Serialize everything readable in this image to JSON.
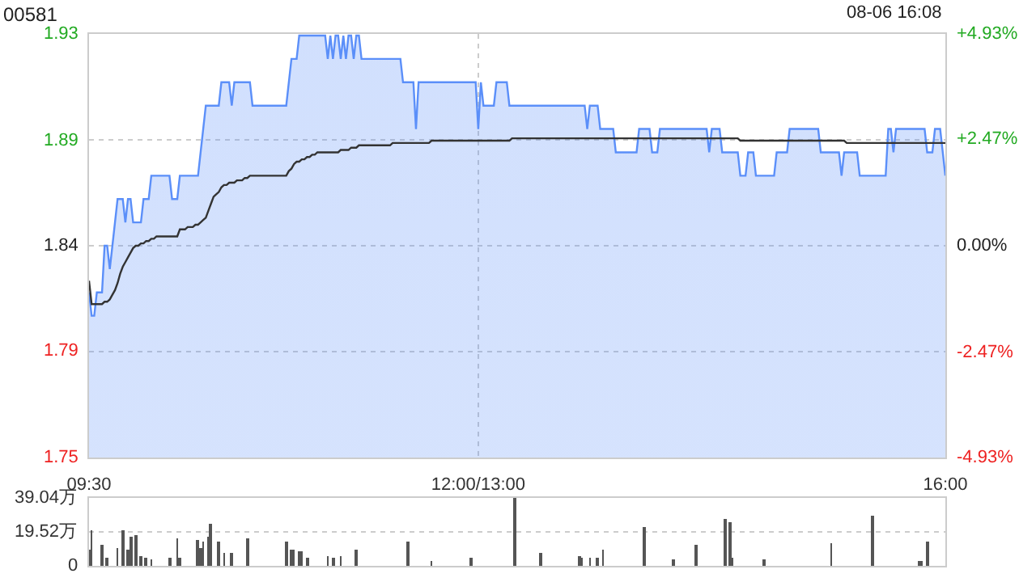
{
  "chart_data": [
    {
      "type": "line",
      "title": "00581",
      "annotations": [
        "08-06 16:08"
      ],
      "categories": [
        "09:30",
        null,
        null,
        null,
        null,
        null,
        null,
        null,
        null,
        null,
        null,
        null,
        null,
        null,
        null,
        null,
        null,
        null,
        null,
        null,
        null,
        null,
        null,
        null,
        null,
        null,
        null,
        null,
        null,
        null,
        null,
        null,
        null,
        null,
        null,
        null,
        null,
        null,
        null,
        null,
        null,
        null,
        null,
        null,
        null,
        null,
        null,
        null,
        null,
        null,
        null,
        null,
        null,
        null,
        null,
        null,
        null,
        null,
        null,
        null,
        null,
        null,
        null,
        null,
        null,
        null,
        null,
        null,
        null,
        null,
        null,
        null,
        null,
        null,
        null,
        null,
        null,
        null,
        null,
        null,
        null,
        null,
        null,
        null,
        null,
        null,
        null,
        null,
        null,
        null,
        null,
        null,
        null,
        null,
        null,
        null,
        null,
        null,
        null,
        null,
        null,
        null,
        null,
        null,
        null,
        null,
        null,
        null,
        null,
        null,
        null,
        null,
        null,
        null,
        null,
        null,
        null,
        null,
        null,
        null,
        null,
        null,
        null,
        null,
        null,
        null,
        null,
        null,
        null,
        null,
        null,
        null,
        null,
        null,
        null,
        null,
        null,
        null,
        null,
        null,
        null,
        null,
        null,
        null,
        null,
        null,
        null,
        null,
        null,
        null,
        "12:00/13:00",
        null,
        null,
        null,
        null,
        null,
        null,
        null,
        null,
        null,
        null,
        null,
        null,
        null,
        null,
        null,
        null,
        null,
        null,
        null,
        null,
        null,
        null,
        null,
        null,
        null,
        null,
        null,
        null,
        null,
        null,
        null,
        null,
        null,
        null,
        null,
        null,
        null,
        null,
        null,
        null,
        null,
        null,
        null,
        null,
        null,
        null,
        null,
        null,
        null,
        null,
        null,
        null,
        null,
        null,
        null,
        null,
        null,
        null,
        null,
        null,
        null,
        null,
        null,
        null,
        null,
        null,
        null,
        null,
        null,
        null,
        null,
        null,
        null,
        null,
        null,
        null,
        null,
        null,
        null,
        null,
        null,
        null,
        null,
        null,
        null,
        null,
        null,
        null,
        null,
        null,
        null,
        null,
        null,
        null,
        null,
        null,
        null,
        null,
        null,
        null,
        null,
        null,
        null,
        null,
        null,
        null,
        null,
        null,
        null,
        null,
        null,
        null,
        null,
        null,
        null,
        null,
        null,
        null,
        null,
        null,
        null,
        null,
        null,
        null,
        null,
        null,
        null,
        null,
        null,
        null,
        null,
        null,
        null,
        null,
        null,
        null,
        null,
        null,
        null,
        null,
        null,
        null,
        null,
        null,
        null,
        null,
        null,
        null,
        null,
        null,
        null,
        null,
        null,
        null,
        null,
        null,
        null,
        null,
        null,
        null,
        null,
        null,
        null,
        null,
        null,
        null,
        null,
        null,
        null,
        null,
        null,
        null,
        null,
        null,
        null,
        null,
        null,
        null,
        null,
        "16:00"
      ],
      "ylim": [
        1.7493,
        1.9307
      ],
      "yticks": [
        {
          "value": 1.7493,
          "label": "1.75"
        },
        {
          "value": 1.7947,
          "label": "1.79"
        },
        {
          "value": 1.84,
          "label": "1.84"
        },
        {
          "value": 1.8853,
          "label": "1.89"
        },
        {
          "value": 1.9307,
          "label": "1.93"
        }
      ],
      "y2lim": [
        -4.93,
        4.93
      ],
      "y2ticks": [
        {
          "value": -4.93,
          "label": "-4.93%"
        },
        {
          "value": -2.47,
          "label": "-2.47%"
        },
        {
          "value": 0,
          "label": "0.00%"
        },
        {
          "value": 2.47,
          "label": "+2.47%"
        },
        {
          "value": 4.93,
          "label": "+4.93%"
        }
      ],
      "grid": true,
      "marker": "none",
      "series": [
        {
          "type": "area",
          "color": "#5b8ff9",
          "values": [
            1.82,
            1.81,
            1.81,
            1.82,
            1.82,
            1.82,
            1.84,
            1.84,
            1.83,
            1.84,
            1.85,
            1.86,
            1.86,
            1.86,
            1.85,
            1.86,
            1.86,
            1.85,
            1.85,
            1.85,
            1.85,
            1.86,
            1.86,
            1.86,
            1.87,
            1.87,
            1.87,
            1.87,
            1.87,
            1.87,
            1.87,
            1.87,
            1.86,
            1.86,
            1.86,
            1.87,
            1.87,
            1.87,
            1.87,
            1.87,
            1.87,
            1.87,
            1.87,
            1.88,
            1.89,
            1.9,
            1.9,
            1.9,
            1.9,
            1.9,
            1.9,
            1.91,
            1.91,
            1.91,
            1.91,
            1.9,
            1.91,
            1.91,
            1.91,
            1.91,
            1.91,
            1.91,
            1.91,
            1.9,
            1.9,
            1.9,
            1.9,
            1.9,
            1.9,
            1.9,
            1.9,
            1.9,
            1.9,
            1.9,
            1.9,
            1.9,
            1.9,
            1.91,
            1.92,
            1.92,
            1.92,
            1.93,
            1.93,
            1.93,
            1.93,
            1.93,
            1.93,
            1.93,
            1.93,
            1.93,
            1.93,
            1.93,
            1.92,
            1.93,
            1.92,
            1.93,
            1.93,
            1.92,
            1.93,
            1.92,
            1.93,
            1.93,
            1.92,
            1.93,
            1.93,
            1.92,
            1.92,
            1.92,
            1.92,
            1.92,
            1.92,
            1.92,
            1.92,
            1.92,
            1.92,
            1.92,
            1.92,
            1.92,
            1.92,
            1.92,
            1.92,
            1.91,
            1.91,
            1.91,
            1.91,
            1.91,
            1.89,
            1.91,
            1.91,
            1.91,
            1.91,
            1.91,
            1.91,
            1.91,
            1.91,
            1.91,
            1.91,
            1.91,
            1.91,
            1.91,
            1.91,
            1.91,
            1.91,
            1.91,
            1.91,
            1.91,
            1.91,
            1.91,
            1.91,
            1.91,
            1.89,
            1.91,
            1.9,
            1.9,
            1.9,
            1.9,
            1.9,
            1.91,
            1.91,
            1.91,
            1.91,
            1.91,
            1.9,
            1.9,
            1.9,
            1.9,
            1.9,
            1.9,
            1.9,
            1.9,
            1.9,
            1.9,
            1.9,
            1.9,
            1.9,
            1.9,
            1.9,
            1.9,
            1.9,
            1.9,
            1.9,
            1.9,
            1.9,
            1.9,
            1.9,
            1.9,
            1.9,
            1.9,
            1.9,
            1.9,
            1.9,
            1.9,
            1.89,
            1.9,
            1.9,
            1.9,
            1.9,
            1.89,
            1.89,
            1.89,
            1.89,
            1.89,
            1.89,
            1.88,
            1.88,
            1.88,
            1.88,
            1.88,
            1.88,
            1.88,
            1.88,
            1.88,
            1.89,
            1.89,
            1.89,
            1.89,
            1.89,
            1.88,
            1.88,
            1.88,
            1.89,
            1.89,
            1.89,
            1.89,
            1.89,
            1.89,
            1.89,
            1.89,
            1.89,
            1.89,
            1.89,
            1.89,
            1.89,
            1.89,
            1.89,
            1.89,
            1.89,
            1.89,
            1.89,
            1.88,
            1.89,
            1.89,
            1.89,
            1.89,
            1.88,
            1.88,
            1.88,
            1.88,
            1.88,
            1.88,
            1.88,
            1.87,
            1.87,
            1.87,
            1.88,
            1.88,
            1.88,
            1.87,
            1.87,
            1.87,
            1.87,
            1.87,
            1.87,
            1.87,
            1.87,
            1.88,
            1.88,
            1.88,
            1.88,
            1.88,
            1.89,
            1.89,
            1.89,
            1.89,
            1.89,
            1.89,
            1.89,
            1.89,
            1.89,
            1.89,
            1.89,
            1.89,
            1.88,
            1.88,
            1.88,
            1.88,
            1.88,
            1.88,
            1.88,
            1.88,
            1.87,
            1.88,
            1.88,
            1.88,
            1.88,
            1.88,
            1.88,
            1.87,
            1.87,
            1.87,
            1.87,
            1.87,
            1.87,
            1.87,
            1.87,
            1.87,
            1.87,
            1.87,
            1.89,
            1.89,
            1.88,
            1.89,
            1.89,
            1.89,
            1.89,
            1.89,
            1.89,
            1.89,
            1.89,
            1.89,
            1.89,
            1.89,
            1.89,
            1.88,
            1.88,
            1.88,
            1.89,
            1.89,
            1.89,
            1.88,
            1.87
          ]
        },
        {
          "type": "line",
          "color": "#333333",
          "values": [
            1.825,
            1.815,
            1.815,
            1.815,
            1.815,
            1.815,
            1.816,
            1.816,
            1.817,
            1.819,
            1.821,
            1.824,
            1.828,
            1.831,
            1.833,
            1.835,
            1.837,
            1.839,
            1.84,
            1.84,
            1.841,
            1.841,
            1.842,
            1.842,
            1.843,
            1.843,
            1.844,
            1.844,
            1.844,
            1.844,
            1.844,
            1.844,
            1.844,
            1.844,
            1.844,
            1.847,
            1.847,
            1.847,
            1.848,
            1.848,
            1.848,
            1.849,
            1.849,
            1.85,
            1.851,
            1.852,
            1.855,
            1.858,
            1.861,
            1.862,
            1.863,
            1.865,
            1.866,
            1.866,
            1.867,
            1.867,
            1.867,
            1.868,
            1.868,
            1.868,
            1.869,
            1.869,
            1.87,
            1.87,
            1.87,
            1.87,
            1.87,
            1.87,
            1.87,
            1.87,
            1.87,
            1.87,
            1.87,
            1.87,
            1.87,
            1.87,
            1.87,
            1.872,
            1.873,
            1.875,
            1.876,
            1.876,
            1.877,
            1.877,
            1.878,
            1.878,
            1.879,
            1.879,
            1.88,
            1.88,
            1.88,
            1.88,
            1.88,
            1.88,
            1.88,
            1.88,
            1.88,
            1.881,
            1.881,
            1.881,
            1.881,
            1.882,
            1.882,
            1.882,
            1.883,
            1.883,
            1.883,
            1.883,
            1.883,
            1.883,
            1.883,
            1.883,
            1.883,
            1.883,
            1.883,
            1.883,
            1.883,
            1.884,
            1.884,
            1.884,
            1.884,
            1.884,
            1.884,
            1.884,
            1.884,
            1.884,
            1.884,
            1.884,
            1.884,
            1.884,
            1.884,
            1.884,
            1.885,
            1.885,
            1.885,
            1.885,
            1.885,
            1.885,
            1.885,
            1.885,
            1.885,
            1.885,
            1.885,
            1.885,
            1.885,
            1.885,
            1.885,
            1.885,
            1.885,
            1.885,
            1.885,
            1.885,
            1.885,
            1.885,
            1.885,
            1.885,
            1.885,
            1.885,
            1.885,
            1.885,
            1.885,
            1.885,
            1.885,
            1.886,
            1.886,
            1.886,
            1.886,
            1.886,
            1.886,
            1.886,
            1.886,
            1.886,
            1.886,
            1.886,
            1.886,
            1.886,
            1.886,
            1.886,
            1.886,
            1.886,
            1.886,
            1.886,
            1.886,
            1.886,
            1.886,
            1.886,
            1.886,
            1.886,
            1.886,
            1.886,
            1.886,
            1.886,
            1.886,
            1.886,
            1.886,
            1.886,
            1.886,
            1.886,
            1.886,
            1.886,
            1.886,
            1.886,
            1.886,
            1.886,
            1.886,
            1.886,
            1.886,
            1.886,
            1.886,
            1.886,
            1.886,
            1.886,
            1.886,
            1.886,
            1.886,
            1.886,
            1.886,
            1.886,
            1.886,
            1.886,
            1.886,
            1.886,
            1.886,
            1.886,
            1.886,
            1.886,
            1.886,
            1.886,
            1.886,
            1.886,
            1.886,
            1.886,
            1.886,
            1.886,
            1.886,
            1.886,
            1.886,
            1.886,
            1.886,
            1.886,
            1.886,
            1.886,
            1.886,
            1.886,
            1.886,
            1.886,
            1.886,
            1.886,
            1.886,
            1.886,
            1.886,
            1.885,
            1.885,
            1.885,
            1.885,
            1.885,
            1.885,
            1.885,
            1.885,
            1.885,
            1.885,
            1.885,
            1.885,
            1.885,
            1.885,
            1.885,
            1.885,
            1.885,
            1.885,
            1.885,
            1.885,
            1.885,
            1.885,
            1.885,
            1.885,
            1.885,
            1.885,
            1.885,
            1.885,
            1.885,
            1.885,
            1.885,
            1.885,
            1.885,
            1.885,
            1.885,
            1.885,
            1.885,
            1.885,
            1.885,
            1.885,
            1.885,
            1.884,
            1.884,
            1.884,
            1.884,
            1.884,
            1.884,
            1.884,
            1.884,
            1.884,
            1.884,
            1.884,
            1.884,
            1.884,
            1.884,
            1.884,
            1.884,
            1.884,
            1.884,
            1.884,
            1.884,
            1.884,
            1.884,
            1.884,
            1.884,
            1.884,
            1.884,
            1.884,
            1.884,
            1.884,
            1.884,
            1.884,
            1.884,
            1.884,
            1.884,
            1.884,
            1.884,
            1.884,
            1.884,
            1.884
          ]
        }
      ]
    },
    {
      "type": "bar",
      "color": "#555555",
      "tick_labels": "y",
      "grid": "y",
      "categories": [
        null,
        null,
        null,
        null,
        null,
        null,
        null,
        null,
        null,
        null,
        null,
        null,
        null,
        null,
        null,
        null,
        null,
        null,
        null,
        null,
        null,
        null,
        null,
        null,
        null,
        null,
        null,
        null,
        null,
        null,
        null,
        null,
        null,
        null,
        null,
        null,
        null,
        null,
        null,
        null,
        null,
        null,
        null,
        null,
        null,
        null,
        null,
        null,
        null,
        null,
        null,
        null,
        null,
        null,
        null,
        null,
        null,
        null,
        null,
        null,
        null,
        null,
        null,
        null,
        null,
        null,
        null,
        null,
        null,
        null,
        null,
        null,
        null,
        null,
        null,
        null,
        null,
        null,
        null,
        null,
        null,
        null,
        null,
        null,
        null,
        null,
        null,
        null,
        null,
        null,
        null,
        null,
        null,
        null,
        null,
        null,
        null,
        null,
        null,
        null,
        null,
        null,
        null,
        null,
        null,
        null,
        null,
        null,
        null,
        null,
        null,
        null,
        null,
        null,
        null,
        null,
        null,
        null,
        null,
        null,
        null,
        null,
        null,
        null,
        null,
        null,
        null,
        null,
        null,
        null,
        null,
        null,
        null,
        null,
        null,
        null,
        null,
        null,
        null,
        null,
        null,
        null,
        null,
        null,
        null,
        null,
        null,
        null,
        null,
        null,
        null,
        null,
        null,
        null,
        null,
        null,
        null,
        null,
        null,
        null,
        null,
        null,
        null,
        null,
        null,
        null,
        null,
        null,
        null,
        null,
        null,
        null,
        null,
        null,
        null,
        null,
        null,
        null,
        null,
        null,
        null,
        null,
        null,
        null,
        null,
        null,
        null,
        null,
        null,
        null,
        null,
        null,
        null,
        null,
        null,
        null,
        null,
        null,
        null,
        null,
        null,
        null,
        null,
        null,
        null,
        null,
        null,
        null,
        null,
        null,
        null,
        null,
        null,
        null,
        null,
        null,
        null,
        null,
        null,
        null,
        null,
        null,
        null,
        null,
        null,
        null,
        null,
        null,
        null,
        null,
        null,
        null,
        null,
        null,
        null,
        null,
        null,
        null,
        null,
        null,
        null,
        null,
        null,
        null,
        null,
        null,
        null,
        null,
        null,
        null,
        null,
        null,
        null,
        null,
        null,
        null,
        null,
        null,
        null,
        null,
        null,
        null,
        null,
        null,
        null,
        null,
        null,
        null,
        null,
        null,
        null,
        null,
        null,
        null,
        null,
        null,
        null,
        null,
        null,
        null,
        null,
        null,
        null,
        null,
        null,
        null,
        null,
        null,
        null,
        null,
        null,
        null,
        null,
        null,
        null,
        null,
        null,
        null,
        null,
        null,
        null,
        null,
        null,
        null,
        null,
        null,
        null,
        null,
        null,
        null,
        null,
        null,
        null,
        null,
        null,
        null,
        null,
        null,
        null,
        null,
        null,
        null,
        null,
        null,
        null,
        null,
        null,
        null,
        null,
        null,
        null
      ],
      "ylim": [
        0,
        39.04
      ],
      "yticks": [
        {
          "value": 0,
          "label": "0"
        },
        {
          "value": 19.52,
          "label": "19.52万"
        },
        {
          "value": 39.04,
          "label": "39.04万"
        }
      ],
      "values": [
        9,
        20,
        null,
        null,
        null,
        12,
        null,
        5,
        null,
        null,
        null,
        10,
        null,
        20,
        null,
        9,
        17,
        null,
        18,
        null,
        6,
        null,
        5,
        null,
        4,
        null,
        null,
        null,
        null,
        null,
        null,
        5,
        null,
        null,
        16,
        5,
        null,
        null,
        null,
        null,
        null,
        null,
        15,
        10,
        14,
        null,
        17,
        24,
        null,
        null,
        14,
        null,
        7,
        null,
        null,
        7,
        null,
        null,
        null,
        null,
        null,
        16,
        null,
        null,
        null,
        null,
        null,
        null,
        null,
        null,
        null,
        null,
        null,
        null,
        null,
        null,
        14,
        null,
        9,
        9,
        null,
        8,
        8,
        null,
        5,
        null,
        null,
        null,
        null,
        null,
        null,
        null,
        6,
        null,
        5,
        null,
        null,
        6,
        null,
        null,
        null,
        null,
        null,
        9,
        null,
        null,
        null,
        null,
        null,
        null,
        null,
        null,
        null,
        null,
        null,
        null,
        null,
        null,
        null,
        null,
        null,
        null,
        null,
        14,
        null,
        null,
        null,
        null,
        null,
        null,
        null,
        null,
        3,
        null,
        null,
        null,
        null,
        null,
        null,
        null,
        null,
        null,
        null,
        null,
        null,
        null,
        null,
        5,
        null,
        null,
        null,
        null,
        null,
        null,
        null,
        null,
        null,
        null,
        null,
        null,
        null,
        null,
        null,
        null,
        39,
        null,
        null,
        null,
        null,
        null,
        null,
        null,
        null,
        null,
        7,
        null,
        null,
        null,
        null,
        null,
        null,
        null,
        null,
        null,
        null,
        null,
        null,
        null,
        null,
        6,
        5,
        null,
        null,
        5,
        null,
        null,
        5,
        null,
        9,
        null,
        null,
        null,
        null,
        null,
        null,
        null,
        null,
        null,
        null,
        null,
        null,
        null,
        null,
        null,
        22,
        null,
        null,
        null,
        null,
        null,
        null,
        null,
        null,
        null,
        null,
        4,
        null,
        null,
        null,
        null,
        null,
        null,
        null,
        null,
        12,
        null,
        null,
        null,
        null,
        null,
        null,
        null,
        null,
        null,
        null,
        27,
        null,
        25,
        5,
        null,
        null,
        null,
        null,
        null,
        null,
        null,
        null,
        null,
        null,
        null,
        4,
        null,
        null,
        null,
        null,
        null,
        null,
        null,
        null,
        null,
        null,
        null,
        null,
        null,
        null,
        null,
        null,
        null,
        null,
        null,
        null,
        null,
        null,
        null,
        null,
        null,
        13,
        null,
        null,
        null,
        null,
        null,
        null,
        null,
        null,
        null,
        null,
        null,
        null,
        null,
        null,
        null,
        29,
        null,
        null,
        null,
        null,
        null,
        null,
        null,
        null,
        null,
        null,
        null,
        null,
        null,
        null,
        null,
        null,
        null,
        3,
        3,
        null,
        14,
        null,
        null,
        null,
        null,
        null,
        null,
        null
      ]
    }
  ]
}
